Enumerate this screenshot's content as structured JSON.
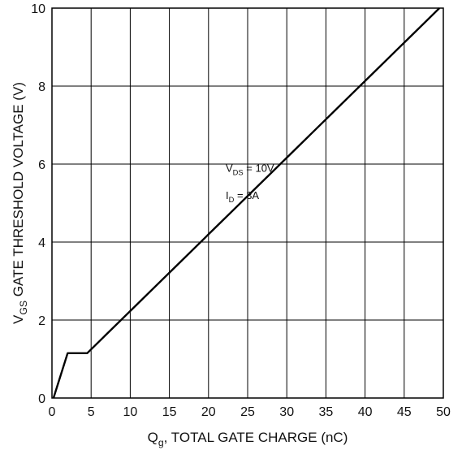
{
  "chart_data": {
    "type": "line",
    "title": "",
    "xlabel": {
      "main": "Q",
      "sub": "g",
      "rest": ", TOTAL GATE CHARGE (nC)"
    },
    "ylabel": {
      "main": "V",
      "sub": "GS",
      "rest": " GATE THRESHOLD VOLTAGE (V)"
    },
    "xlim": [
      0,
      50
    ],
    "ylim": [
      0,
      10
    ],
    "xticks": [
      "0",
      "5",
      "10",
      "15",
      "20",
      "25",
      "30",
      "35",
      "40",
      "45",
      "50"
    ],
    "yticks": [
      "0",
      "2",
      "4",
      "6",
      "8",
      "10"
    ],
    "grid": true,
    "series": [
      {
        "x": [
          0.2,
          2.0,
          4.5,
          49.5
        ],
        "y": [
          0,
          1.15,
          1.15,
          10
        ]
      }
    ],
    "annotations": [
      {
        "main": "V",
        "sub": "DS",
        "rest": " = 10V",
        "x": 22.2,
        "y": 5.8
      },
      {
        "main": "I",
        "sub": "D",
        "rest": " = 3A",
        "x": 22.2,
        "y": 5.1
      }
    ]
  }
}
